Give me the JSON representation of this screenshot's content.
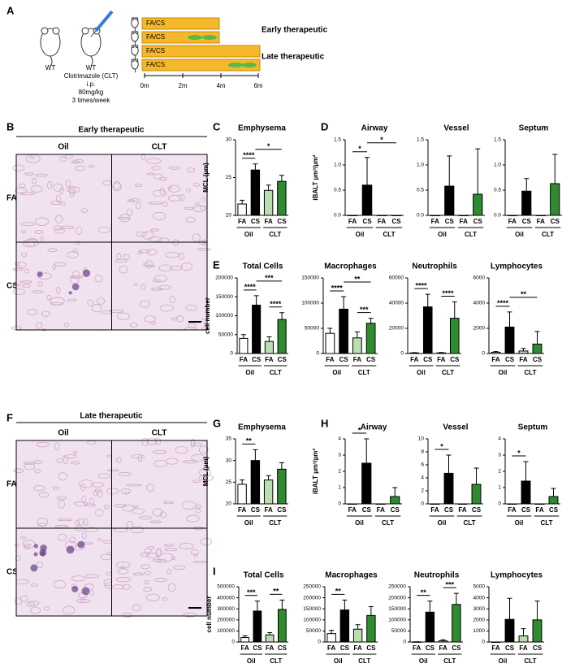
{
  "panel_labels": [
    "A",
    "B",
    "C",
    "D",
    "E",
    "F",
    "G",
    "H",
    "I"
  ],
  "schematic": {
    "mice": [
      "WT",
      "WT"
    ],
    "drug": "Clotrimazole (CLT)",
    "dose": [
      "i.p.",
      "80mg/kg",
      "3 times/week"
    ],
    "bars": [
      "FA/CS",
      "FA/CS",
      "FA/CS",
      "FA/CS"
    ],
    "groups": [
      "Early therapeutic",
      "Late therapeutic"
    ],
    "timeline": [
      "0m",
      "2m",
      "4m",
      "6m"
    ]
  },
  "histology": [
    {
      "title": "Early therapeutic",
      "columns": [
        "Oil",
        "CLT"
      ],
      "rows": [
        "FA",
        "CS"
      ]
    },
    {
      "title": "Late therapeutic",
      "columns": [
        "Oil",
        "CLT"
      ],
      "rows": [
        "FA",
        "CS"
      ]
    }
  ],
  "chart_data": [
    {
      "type": "bar",
      "title": "Emphysema",
      "ylabel": "MCL (µm)",
      "categories": [
        "FA",
        "CS",
        "FA",
        "CS"
      ],
      "groups": [
        "Oil",
        "CLT"
      ],
      "values": [
        21.5,
        26,
        23.3,
        24.5
      ],
      "errors": [
        0.5,
        0.8,
        0.7,
        0.8
      ],
      "colors": [
        "#ffffff",
        "#000000",
        "#b9dfb0",
        "#2e8b2e"
      ],
      "ylim": [
        20,
        30
      ],
      "yticks": [
        20,
        25,
        30
      ],
      "annotations": [
        "****",
        "*"
      ]
    },
    {
      "type": "bar",
      "title": "Airway",
      "ylabel": "iBALT µm³/µm²",
      "categories": [
        "FA",
        "CS",
        "FA",
        "CS"
      ],
      "groups": [
        "Oil",
        "CLT"
      ],
      "values": [
        0,
        0.6,
        0,
        0
      ],
      "errors": [
        0,
        0.55,
        0,
        0
      ],
      "colors": [
        "#ffffff",
        "#000000",
        "#b9dfb0",
        "#2e8b2e"
      ],
      "ylim": [
        0,
        1.5
      ],
      "yticks": [
        {
          "value": 0,
          "label": "0.0"
        },
        {
          "value": 0.5,
          "label": "0.5"
        },
        {
          "value": 1,
          "label": "1.0"
        },
        {
          "value": 1.5,
          "label": "1.5"
        }
      ],
      "annotations": [
        "*",
        "*"
      ]
    },
    {
      "type": "bar",
      "title": "Vessel",
      "categories": [
        "FA",
        "CS",
        "FA",
        "CS"
      ],
      "groups": [
        "Oil",
        "CLT"
      ],
      "values": [
        0,
        0.58,
        0,
        0.42
      ],
      "errors": [
        0,
        0.6,
        0,
        0.9
      ],
      "colors": [
        "#ffffff",
        "#000000",
        "#b9dfb0",
        "#2e8b2e"
      ],
      "ylim": [
        0,
        1.5
      ],
      "yticks": [
        {
          "value": 0,
          "label": "0.0"
        },
        {
          "value": 0.5,
          "label": "0.5"
        },
        {
          "value": 1,
          "label": "1.0"
        },
        {
          "value": 1.5,
          "label": "1.5"
        }
      ],
      "annotations": []
    },
    {
      "type": "bar",
      "title": "Septum",
      "categories": [
        "FA",
        "CS",
        "FA",
        "CS"
      ],
      "groups": [
        "Oil",
        "CLT"
      ],
      "values": [
        0,
        0.48,
        0,
        0.63
      ],
      "errors": [
        0,
        0.25,
        0,
        0.58
      ],
      "colors": [
        "#ffffff",
        "#000000",
        "#b9dfb0",
        "#2e8b2e"
      ],
      "ylim": [
        0,
        1.5
      ],
      "yticks": [
        {
          "value": 0,
          "label": "0.0"
        },
        {
          "value": 0.5,
          "label": "0.5"
        },
        {
          "value": 1,
          "label": "1.0"
        },
        {
          "value": 1.5,
          "label": "1.5"
        }
      ],
      "annotations": []
    },
    {
      "type": "bar",
      "title": "Total Cells",
      "ylabel": "cell number",
      "categories": [
        "FA",
        "CS",
        "FA",
        "CS"
      ],
      "groups": [
        "Oil",
        "CLT"
      ],
      "values": [
        40000,
        128000,
        32000,
        90000
      ],
      "errors": [
        10000,
        25000,
        12000,
        18000
      ],
      "colors": [
        "#ffffff",
        "#000000",
        "#b9dfb0",
        "#2e8b2e"
      ],
      "ylim": [
        0,
        200000
      ],
      "yticks": [
        0,
        50000,
        100000,
        150000,
        200000
      ],
      "annotations": [
        "****",
        "***",
        "****"
      ]
    },
    {
      "type": "bar",
      "title": "Macrophages",
      "categories": [
        "FA",
        "CS",
        "FA",
        "CS"
      ],
      "groups": [
        "Oil",
        "CLT"
      ],
      "values": [
        40000,
        88000,
        31000,
        60000
      ],
      "errors": [
        10000,
        25000,
        12000,
        10000
      ],
      "colors": [
        "#ffffff",
        "#000000",
        "#b9dfb0",
        "#2e8b2e"
      ],
      "ylim": [
        0,
        150000
      ],
      "yticks": [
        0,
        50000,
        100000,
        150000
      ],
      "annotations": [
        "****",
        "**",
        "***"
      ]
    },
    {
      "type": "bar",
      "title": "Neutrophils",
      "categories": [
        "FA",
        "CS",
        "FA",
        "CS"
      ],
      "groups": [
        "Oil",
        "CLT"
      ],
      "values": [
        500,
        37000,
        500,
        28000
      ],
      "errors": [
        200,
        10000,
        300,
        13000
      ],
      "colors": [
        "#ffffff",
        "#000000",
        "#b9dfb0",
        "#2e8b2e"
      ],
      "ylim": [
        0,
        60000
      ],
      "yticks": [
        0,
        20000,
        40000,
        60000
      ],
      "annotations": [
        "****",
        "****"
      ]
    },
    {
      "type": "bar",
      "title": "Lymphocytes",
      "categories": [
        "FA",
        "CS",
        "FA",
        "CS"
      ],
      "groups": [
        "Oil",
        "CLT"
      ],
      "values": [
        100,
        2100,
        200,
        750
      ],
      "errors": [
        50,
        1200,
        200,
        1000
      ],
      "colors": [
        "#ffffff",
        "#000000",
        "#b9dfb0",
        "#2e8b2e"
      ],
      "ylim": [
        0,
        6000
      ],
      "yticks": [
        0,
        2000,
        4000,
        6000
      ],
      "annotations": [
        "****",
        "**"
      ]
    },
    {
      "type": "bar",
      "title": "Emphysema",
      "ylabel": "MCL (µm)",
      "categories": [
        "FA",
        "CS",
        "FA",
        "CS"
      ],
      "groups": [
        "Oil",
        "CLT"
      ],
      "values": [
        24.5,
        30,
        25.5,
        28
      ],
      "errors": [
        1,
        2.5,
        1,
        1.5
      ],
      "colors": [
        "#ffffff",
        "#000000",
        "#b9dfb0",
        "#2e8b2e"
      ],
      "ylim": [
        20,
        35
      ],
      "yticks": [
        20,
        25,
        30,
        35
      ],
      "annotations": [
        "**"
      ]
    },
    {
      "type": "bar",
      "title": "Airway",
      "ylabel": "iBALT µm³/µm²",
      "categories": [
        "FA",
        "CS",
        "FA",
        "CS"
      ],
      "groups": [
        "Oil",
        "CLT"
      ],
      "values": [
        0,
        2.5,
        0,
        0.45
      ],
      "errors": [
        0,
        1.5,
        0,
        0.55
      ],
      "colors": [
        "#ffffff",
        "#000000",
        "#b9dfb0",
        "#2e8b2e"
      ],
      "ylim": [
        0,
        4
      ],
      "yticks": [
        0,
        1,
        2,
        3,
        4
      ],
      "annotations": [
        "*"
      ]
    },
    {
      "type": "bar",
      "title": "Vessel",
      "categories": [
        "FA",
        "CS",
        "FA",
        "CS"
      ],
      "groups": [
        "Oil",
        "CLT"
      ],
      "values": [
        0,
        4.7,
        0,
        3
      ],
      "errors": [
        0,
        2.8,
        0,
        2.5
      ],
      "colors": [
        "#ffffff",
        "#000000",
        "#b9dfb0",
        "#2e8b2e"
      ],
      "ylim": [
        0,
        10
      ],
      "yticks": [
        0,
        2,
        4,
        6,
        8,
        10
      ],
      "annotations": [
        "*"
      ]
    },
    {
      "type": "bar",
      "title": "Septum",
      "categories": [
        "FA",
        "CS",
        "FA",
        "CS"
      ],
      "groups": [
        "Oil",
        "CLT"
      ],
      "values": [
        0,
        1.4,
        0,
        0.45
      ],
      "errors": [
        0,
        1.2,
        0,
        0.5
      ],
      "colors": [
        "#ffffff",
        "#000000",
        "#b9dfb0",
        "#2e8b2e"
      ],
      "ylim": [
        0,
        4
      ],
      "yticks": [
        0,
        1,
        2,
        3,
        4
      ],
      "annotations": [
        "*"
      ]
    },
    {
      "type": "bar",
      "title": "Total Cells",
      "ylabel": "cell number",
      "categories": [
        "FA",
        "CS",
        "FA",
        "CS"
      ],
      "groups": [
        "Oil",
        "CLT"
      ],
      "values": [
        40000,
        280000,
        65000,
        295000
      ],
      "errors": [
        15000,
        90000,
        20000,
        85000
      ],
      "colors": [
        "#ffffff",
        "#000000",
        "#b9dfb0",
        "#2e8b2e"
      ],
      "ylim": [
        0,
        500000
      ],
      "yticks": [
        0,
        100000,
        200000,
        300000,
        400000,
        500000
      ],
      "annotations": [
        "***",
        "**"
      ]
    },
    {
      "type": "bar",
      "title": "Macrophages",
      "categories": [
        "FA",
        "CS",
        "FA",
        "CS"
      ],
      "groups": [
        "Oil",
        "CLT"
      ],
      "values": [
        38000,
        145000,
        58000,
        120000
      ],
      "errors": [
        15000,
        45000,
        20000,
        40000
      ],
      "colors": [
        "#ffffff",
        "#000000",
        "#b9dfb0",
        "#2e8b2e"
      ],
      "ylim": [
        0,
        250000
      ],
      "yticks": [
        0,
        50000,
        100000,
        150000,
        200000,
        250000
      ],
      "annotations": [
        "**"
      ]
    },
    {
      "type": "bar",
      "title": "Neutrophils",
      "categories": [
        "FA",
        "CS",
        "FA",
        "CS"
      ],
      "groups": [
        "Oil",
        "CLT"
      ],
      "values": [
        500,
        135000,
        5000,
        170000
      ],
      "errors": [
        200,
        50000,
        5000,
        50000
      ],
      "colors": [
        "#ffffff",
        "#000000",
        "#b9dfb0",
        "#2e8b2e"
      ],
      "ylim": [
        0,
        250000
      ],
      "yticks": [
        0,
        50000,
        100000,
        150000,
        200000,
        250000
      ],
      "annotations": [
        "**",
        "***"
      ]
    },
    {
      "type": "bar",
      "title": "Lymphocytes",
      "categories": [
        "FA",
        "CS",
        "FA",
        "CS"
      ],
      "groups": [
        "Oil",
        "CLT"
      ],
      "values": [
        0,
        2050,
        550,
        2000
      ],
      "errors": [
        0,
        1900,
        650,
        1700
      ],
      "colors": [
        "#ffffff",
        "#000000",
        "#b9dfb0",
        "#2e8b2e"
      ],
      "ylim": [
        0,
        5000
      ],
      "yticks": [
        0,
        1000,
        2000,
        3000,
        4000,
        5000
      ],
      "annotations": []
    }
  ]
}
